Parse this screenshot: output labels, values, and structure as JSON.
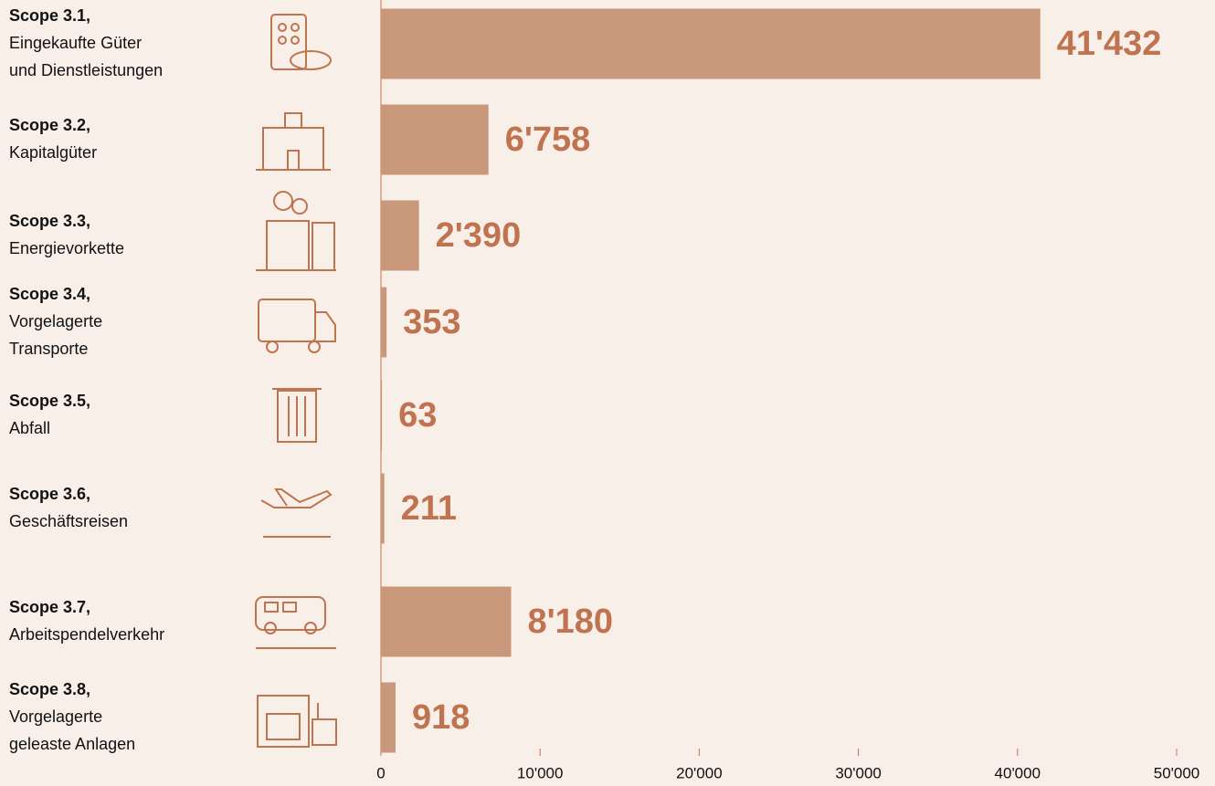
{
  "chart_data": {
    "type": "hbar",
    "categories": [
      "Scope 3.1,",
      "Scope 3.2,",
      "Scope 3.3,",
      "Scope 3.4,",
      "Scope 3.5,",
      "Scope 3.6,",
      "Scope 3.7,",
      "Scope 3.8,"
    ],
    "category_descriptions": [
      [
        "Eingekaufte Güter",
        "und Dienstleistungen"
      ],
      [
        "Kapitalgüter"
      ],
      [
        "Energievorkette"
      ],
      [
        "Vorgelagerte",
        "Transporte"
      ],
      [
        "Abfall"
      ],
      [
        "Geschäftsreisen"
      ],
      [
        "Arbeitspendelverkehr"
      ],
      [
        "Vorgelagerte",
        "geleaste Anlagen"
      ]
    ],
    "values": [
      41432,
      6758,
      2390,
      353,
      63,
      211,
      8180,
      918
    ],
    "value_labels": [
      "41'432",
      "6'758",
      "2'390",
      "353",
      "63",
      "211",
      "8'180",
      "918"
    ],
    "color": "#c9977a",
    "xlim": [
      0,
      50000
    ],
    "xticks": [
      0,
      {
        "value": 10000,
        "label": "10'000"
      },
      {
        "value": 20000,
        "label": "20'000"
      },
      {
        "value": 30000,
        "label": "30'000"
      },
      {
        "value": 40000,
        "label": "40'000"
      },
      {
        "value": 50000,
        "label": "50'000"
      }
    ]
  }
}
